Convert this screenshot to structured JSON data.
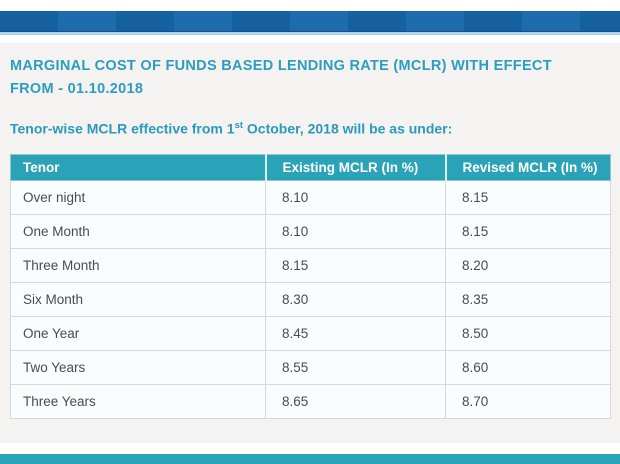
{
  "header": {
    "title_line1": "MARGINAL COST OF FUNDS BASED LENDING RATE (MCLR) WITH EFFECT",
    "title_line2": "FROM - 01.10.2018"
  },
  "subtitle": {
    "prefix": "Tenor-wise MCLR effective from 1",
    "superscript": "st",
    "suffix": " October, 2018 will be as under:"
  },
  "table": {
    "headers": [
      "Tenor",
      "Existing MCLR (In %)",
      "Revised MCLR (In %)"
    ],
    "rows": [
      {
        "tenor": "Over night",
        "existing": "8.10",
        "revised": "8.15"
      },
      {
        "tenor": "One Month",
        "existing": "8.10",
        "revised": "8.15"
      },
      {
        "tenor": "Three Month",
        "existing": "8.15",
        "revised": "8.20"
      },
      {
        "tenor": "Six Month",
        "existing": "8.30",
        "revised": "8.35"
      },
      {
        "tenor": "One Year",
        "existing": "8.45",
        "revised": "8.50"
      },
      {
        "tenor": "Two Years",
        "existing": "8.55",
        "revised": "8.60"
      },
      {
        "tenor": "Three Years",
        "existing": "8.65",
        "revised": "8.70"
      }
    ]
  },
  "colors": {
    "navbar_blue": "#15619f",
    "navbar_blue_light": "#1d6cad",
    "navbar_rule_blue": "#aed2ea",
    "title_teal": "#2b9dbf",
    "table_header_teal": "#2aa3b8",
    "footer_teal": "#2aa4b8",
    "content_background": "#f4f3f2",
    "row_background": "#fafdfe",
    "cell_text": "#4b4b4b"
  }
}
